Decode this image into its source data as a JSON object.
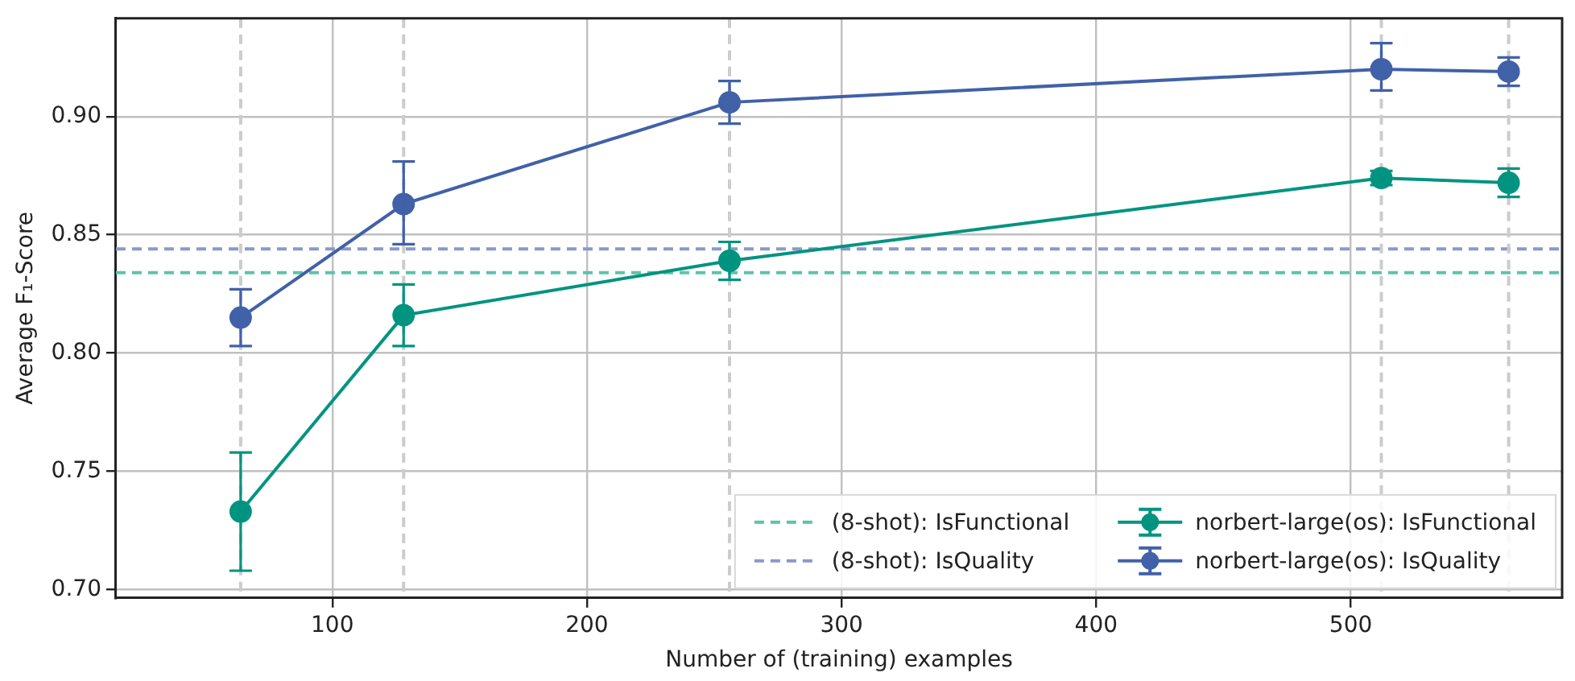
{
  "chart_data": {
    "type": "line",
    "xlabel": "Number of (training) examples",
    "ylabel": "Average F₁-Score",
    "x": [
      64,
      128,
      256,
      512,
      562
    ],
    "series": [
      {
        "name": "norbert-large(os): IsFunctional",
        "color": "#009480",
        "values": [
          0.733,
          0.816,
          0.839,
          0.874,
          0.872
        ],
        "errors": [
          [
            0.708,
            0.758
          ],
          [
            0.803,
            0.829
          ],
          [
            0.831,
            0.847
          ],
          [
            0.871,
            0.877
          ],
          [
            0.866,
            0.878
          ]
        ]
      },
      {
        "name": "norbert-large(os): IsQuality",
        "color": "#4161a8",
        "values": [
          0.815,
          0.863,
          0.906,
          0.92,
          0.919
        ],
        "errors": [
          [
            0.803,
            0.827
          ],
          [
            0.846,
            0.881
          ],
          [
            0.897,
            0.915
          ],
          [
            0.911,
            0.931
          ],
          [
            0.913,
            0.925
          ]
        ]
      }
    ],
    "ref_lines": [
      {
        "axis": "y",
        "value": 0.834,
        "label": "(8-shot): IsFunctional",
        "color": "#5cc3aa",
        "line_style": "dashed"
      },
      {
        "axis": "y",
        "value": 0.844,
        "label": "(8-shot): IsQuality",
        "color": "#8899cc",
        "line_style": "dashed"
      },
      {
        "axis": "x",
        "value": 64,
        "label": null,
        "color": "#cccccc",
        "line_style": "dashed"
      },
      {
        "axis": "x",
        "value": 128,
        "label": null,
        "color": "#cccccc",
        "line_style": "dashed"
      },
      {
        "axis": "x",
        "value": 256,
        "label": null,
        "color": "#cccccc",
        "line_style": "dashed"
      },
      {
        "axis": "x",
        "value": 512,
        "label": null,
        "color": "#cccccc",
        "line_style": "dashed"
      },
      {
        "axis": "x",
        "value": 562,
        "label": null,
        "color": "#cccccc",
        "line_style": "dashed"
      }
    ],
    "xlim": [
      15,
      583
    ],
    "xticks": [
      100,
      200,
      300,
      400,
      500
    ],
    "ylim": [
      0.6965,
      0.9415
    ],
    "yticks": [
      {
        "value": 0.7,
        "label": "0.70"
      },
      {
        "value": 0.75,
        "label": "0.75"
      },
      {
        "value": 0.8,
        "label": "0.80"
      },
      {
        "value": 0.85,
        "label": "0.85"
      },
      {
        "value": 0.9,
        "label": "0.90"
      }
    ],
    "grid": true,
    "legend": "bottom right",
    "marker": "circle",
    "line_style": "solid"
  }
}
